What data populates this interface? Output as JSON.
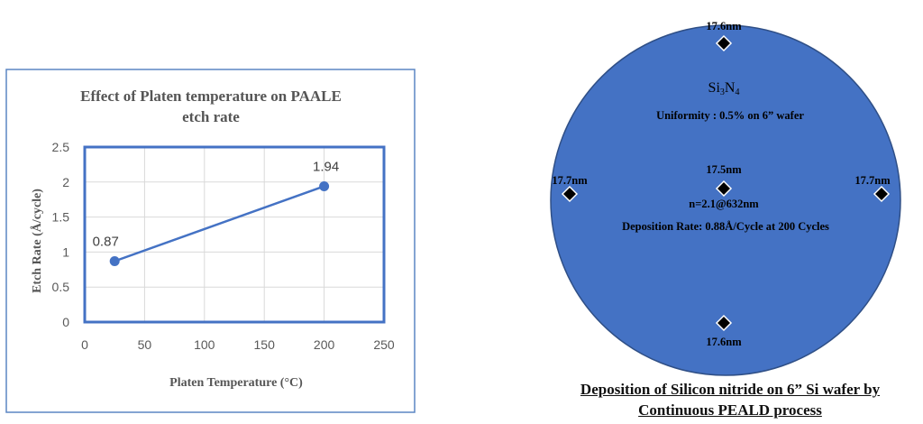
{
  "chart_data": {
    "type": "line",
    "title_line1": "Effect of Platen temperature on PAALE",
    "title_line2": "etch rate",
    "xlabel": "Platen Temperature (°C)",
    "ylabel": "Etch Rate (Å/cycle)",
    "xlim": [
      0,
      250
    ],
    "ylim": [
      0,
      2.5
    ],
    "x_ticks": [
      "0",
      "50",
      "100",
      "150",
      "200",
      "250"
    ],
    "y_ticks": [
      "0",
      "0.5",
      "1",
      "1.5",
      "2",
      "2.5"
    ],
    "grid": true,
    "series": [
      {
        "x": [
          25,
          200
        ],
        "y": [
          0.87,
          1.94
        ],
        "labels": [
          "0.87",
          "1.94"
        ]
      }
    ]
  },
  "wafer": {
    "material": "Si",
    "material_sub1": "3",
    "material_mid": "N",
    "material_sub2": "4",
    "uniformity": "Uniformity : 0.5% on 6” wafer",
    "refractive_index": "n=2.1@632nm",
    "deposition_rate": "Deposition Rate: 0.88Å/Cycle at 200 Cycles",
    "points": {
      "top": "17.6nm",
      "center": "17.5nm",
      "left": "17.7nm",
      "right": "17.7nm",
      "bottom": "17.6nm"
    },
    "fill_color": "#4472C4"
  },
  "caption": {
    "line1": "Deposition of Silicon nitride on 6” Si wafer by",
    "line2": "Continuous PEALD  process"
  }
}
